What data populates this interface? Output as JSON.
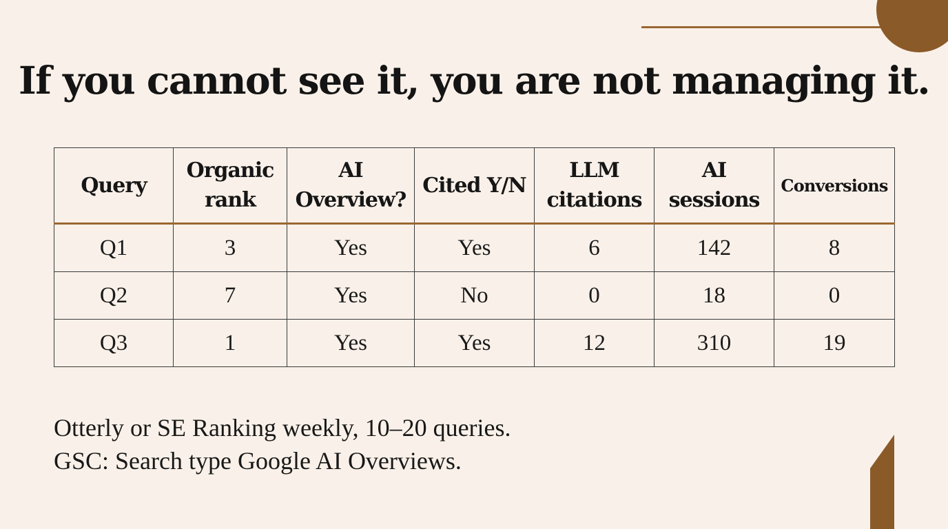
{
  "title": "If you cannot see it, you are not managing it.",
  "table": {
    "headers": [
      "Query",
      "Organic rank",
      "AI Overview?",
      "Cited Y/N",
      "LLM citations",
      "AI sessions",
      "Conversions"
    ],
    "rows": [
      [
        "Q1",
        "3",
        "Yes",
        "Yes",
        "6",
        "142",
        "8"
      ],
      [
        "Q2",
        "7",
        "Yes",
        "No",
        "0",
        "18",
        "0"
      ],
      [
        "Q3",
        "1",
        "Yes",
        "Yes",
        "12",
        "310",
        "19"
      ]
    ]
  },
  "notes": [
    "Otterly or SE Ranking weekly, 10–20 queries.",
    "GSC: Search type Google AI Overviews."
  ],
  "colors": {
    "background": "#f9f1e9",
    "accent": "#9a6631",
    "accent_dark": "#8b5a29",
    "text": "#161616"
  }
}
